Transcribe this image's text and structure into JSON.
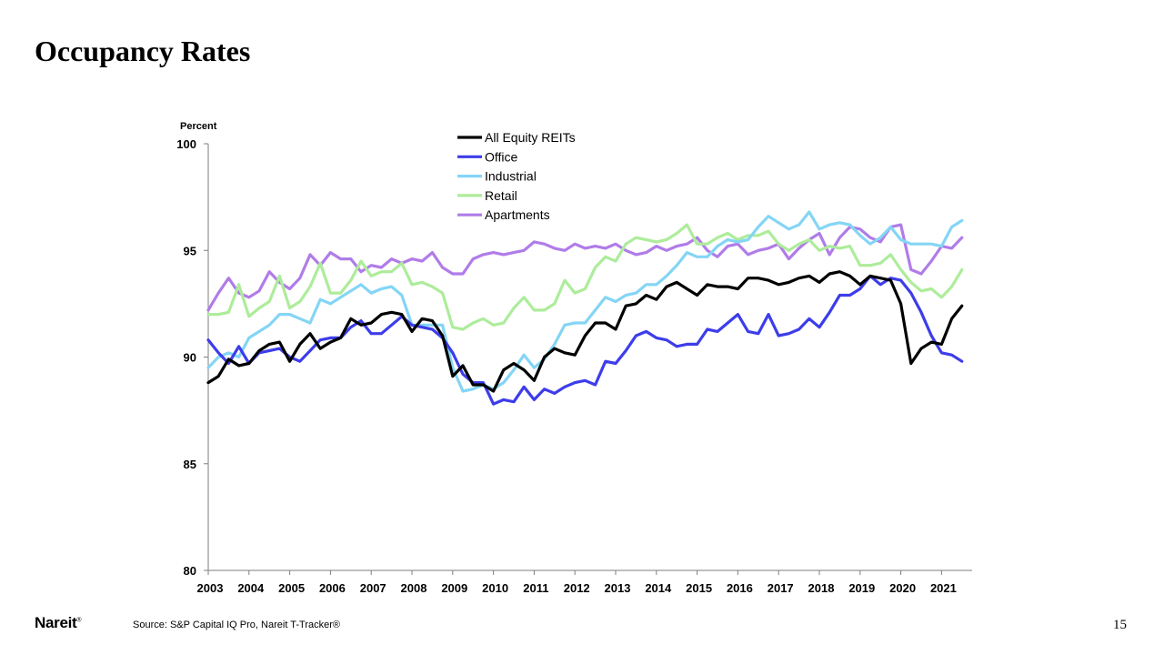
{
  "slide": {
    "title": "Occupancy Rates",
    "logo": "Nareit",
    "logo_mark": "®",
    "source": "Source: S&P Capital IQ Pro, Nareit T-Tracker®",
    "page_number": "15"
  },
  "chart_data": {
    "type": "line",
    "title": "",
    "ylabel": "Percent",
    "xlabel": "",
    "ylim": [
      80,
      100
    ],
    "yticks": [
      80,
      85,
      90,
      95,
      100
    ],
    "xlim": [
      2003.0,
      2021.75
    ],
    "xticks": [
      2003,
      2004,
      2005,
      2006,
      2007,
      2008,
      2009,
      2010,
      2011,
      2012,
      2013,
      2014,
      2015,
      2016,
      2017,
      2018,
      2019,
      2020,
      2021
    ],
    "x_start": 2003.0,
    "x_step": 0.25,
    "grid": false,
    "legend": "top-center",
    "series": [
      {
        "name": "All Equity REITs",
        "color": "#000000",
        "values": [
          88.8,
          89.1,
          89.9,
          89.6,
          89.7,
          90.3,
          90.6,
          90.7,
          89.8,
          90.6,
          91.1,
          90.4,
          90.7,
          90.9,
          91.8,
          91.5,
          91.6,
          92.0,
          92.1,
          92.0,
          91.2,
          91.8,
          91.7,
          91.0,
          89.1,
          89.6,
          88.7,
          88.7,
          88.4,
          89.4,
          89.7,
          89.4,
          88.9,
          90.0,
          90.4,
          90.2,
          90.1,
          91.0,
          91.6,
          91.6,
          91.3,
          92.4,
          92.5,
          92.9,
          92.7,
          93.3,
          93.5,
          93.2,
          92.9,
          93.4,
          93.3,
          93.3,
          93.2,
          93.7,
          93.7,
          93.6,
          93.4,
          93.5,
          93.7,
          93.8,
          93.5,
          93.9,
          94.0,
          93.8,
          93.4,
          93.8,
          93.7,
          93.6,
          92.5,
          89.7,
          90.4,
          90.7,
          90.6,
          91.8,
          92.4
        ]
      },
      {
        "name": "Office",
        "color": "#3d3dea",
        "values": [
          90.8,
          90.2,
          89.7,
          90.5,
          89.7,
          90.2,
          90.3,
          90.4,
          90.0,
          89.8,
          90.3,
          90.8,
          90.9,
          90.9,
          91.4,
          91.7,
          91.1,
          91.1,
          91.5,
          91.9,
          91.5,
          91.4,
          91.3,
          90.9,
          90.2,
          89.2,
          88.8,
          88.8,
          87.8,
          88.0,
          87.9,
          88.6,
          88.0,
          88.5,
          88.3,
          88.6,
          88.8,
          88.9,
          88.7,
          89.8,
          89.7,
          90.3,
          91.0,
          91.2,
          90.9,
          90.8,
          90.5,
          90.6,
          90.6,
          91.3,
          91.2,
          91.6,
          92.0,
          91.2,
          91.1,
          92.0,
          91.0,
          91.1,
          91.3,
          91.8,
          91.4,
          92.1,
          92.9,
          92.9,
          93.2,
          93.8,
          93.4,
          93.7,
          93.6,
          93.0,
          92.1,
          91.0,
          90.2,
          90.1,
          89.8
        ]
      },
      {
        "name": "Industrial",
        "color": "#84d5f5",
        "values": [
          89.5,
          90.0,
          90.2,
          90.0,
          90.9,
          91.2,
          91.5,
          92.0,
          92.0,
          91.8,
          91.6,
          92.7,
          92.5,
          92.8,
          93.1,
          93.4,
          93.0,
          93.2,
          93.3,
          92.9,
          91.5,
          91.5,
          91.5,
          91.5,
          89.5,
          88.4,
          88.5,
          88.7,
          88.5,
          88.8,
          89.4,
          90.1,
          89.5,
          89.9,
          90.6,
          91.5,
          91.6,
          91.6,
          92.2,
          92.8,
          92.6,
          92.9,
          93.0,
          93.4,
          93.4,
          93.8,
          94.3,
          94.9,
          94.7,
          94.7,
          95.2,
          95.5,
          95.4,
          95.5,
          96.1,
          96.6,
          96.3,
          96.0,
          96.2,
          96.8,
          96.0,
          96.2,
          96.3,
          96.2,
          95.7,
          95.3,
          95.6,
          96.1,
          95.5,
          95.3,
          95.3,
          95.3,
          95.2,
          96.1,
          96.4
        ]
      },
      {
        "name": "Retail",
        "color": "#adec9b",
        "values": [
          92.0,
          92.0,
          92.1,
          93.4,
          91.9,
          92.3,
          92.6,
          93.8,
          92.3,
          92.6,
          93.3,
          94.4,
          93.0,
          93.0,
          93.6,
          94.5,
          93.8,
          94.0,
          94.0,
          94.4,
          93.4,
          93.5,
          93.3,
          93.0,
          91.4,
          91.3,
          91.6,
          91.8,
          91.5,
          91.6,
          92.3,
          92.8,
          92.2,
          92.2,
          92.5,
          93.6,
          93.0,
          93.2,
          94.2,
          94.7,
          94.5,
          95.3,
          95.6,
          95.5,
          95.4,
          95.5,
          95.8,
          96.2,
          95.3,
          95.3,
          95.6,
          95.8,
          95.5,
          95.7,
          95.7,
          95.9,
          95.3,
          95.0,
          95.3,
          95.5,
          95.0,
          95.2,
          95.1,
          95.2,
          94.3,
          94.3,
          94.4,
          94.8,
          94.1,
          93.5,
          93.1,
          93.2,
          92.8,
          93.3,
          94.1
        ]
      },
      {
        "name": "Apartments",
        "color": "#b07ce8",
        "values": [
          92.2,
          93.0,
          93.7,
          93.0,
          92.8,
          93.1,
          94.0,
          93.5,
          93.2,
          93.7,
          94.8,
          94.3,
          94.9,
          94.6,
          94.6,
          94.0,
          94.3,
          94.2,
          94.6,
          94.4,
          94.6,
          94.5,
          94.9,
          94.2,
          93.9,
          93.9,
          94.6,
          94.8,
          94.9,
          94.8,
          94.9,
          95.0,
          95.4,
          95.3,
          95.1,
          95.0,
          95.3,
          95.1,
          95.2,
          95.1,
          95.3,
          95.0,
          94.8,
          94.9,
          95.2,
          95.0,
          95.2,
          95.3,
          95.6,
          95.0,
          94.7,
          95.2,
          95.3,
          94.8,
          95.0,
          95.1,
          95.3,
          94.6,
          95.1,
          95.5,
          95.8,
          94.8,
          95.6,
          96.1,
          96.0,
          95.6,
          95.4,
          96.1,
          96.2,
          94.1,
          93.9,
          94.5,
          95.2,
          95.1,
          95.6
        ]
      }
    ]
  }
}
